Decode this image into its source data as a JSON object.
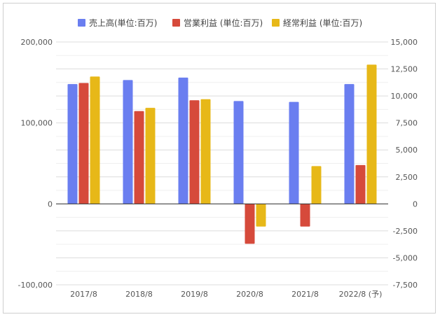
{
  "chart_data": {
    "type": "bar",
    "categories": [
      "2017/8",
      "2018/8",
      "2019/8",
      "2020/8",
      "2021/8",
      "2022/8 (予)"
    ],
    "series": [
      {
        "name": "売上高(単位:百万)",
        "axis": "left",
        "color": "#6a7ef0",
        "values": [
          148000,
          153000,
          156000,
          127000,
          126000,
          148000
        ]
      },
      {
        "name": "営業利益 (単位:百万)",
        "axis": "right",
        "color": "#d64a3b",
        "values": [
          11200,
          8600,
          9600,
          -3700,
          -2100,
          3600
        ]
      },
      {
        "name": "経常利益 (単位:百万)",
        "axis": "right",
        "color": "#e7b818",
        "values": [
          11800,
          8900,
          9700,
          -2100,
          3500,
          12900
        ]
      }
    ],
    "left_axis": {
      "ylim": [
        -100000,
        200000
      ],
      "ticks": [
        200000,
        100000,
        0,
        -100000
      ],
      "tick_labels": [
        "200,000",
        "100,000",
        "0",
        "-100,000"
      ]
    },
    "right_axis": {
      "ylim": [
        -7500,
        15000
      ],
      "ticks": [
        15000,
        12500,
        10000,
        7500,
        5000,
        2500,
        0,
        -2500,
        -5000,
        -7500
      ],
      "tick_labels": [
        "15,000",
        "12,500",
        "10,000",
        "7,500",
        "5,000",
        "2,500",
        "0",
        "-2,500",
        "-5,000",
        "-7,500"
      ]
    },
    "legend_position": "top",
    "grid": true
  }
}
